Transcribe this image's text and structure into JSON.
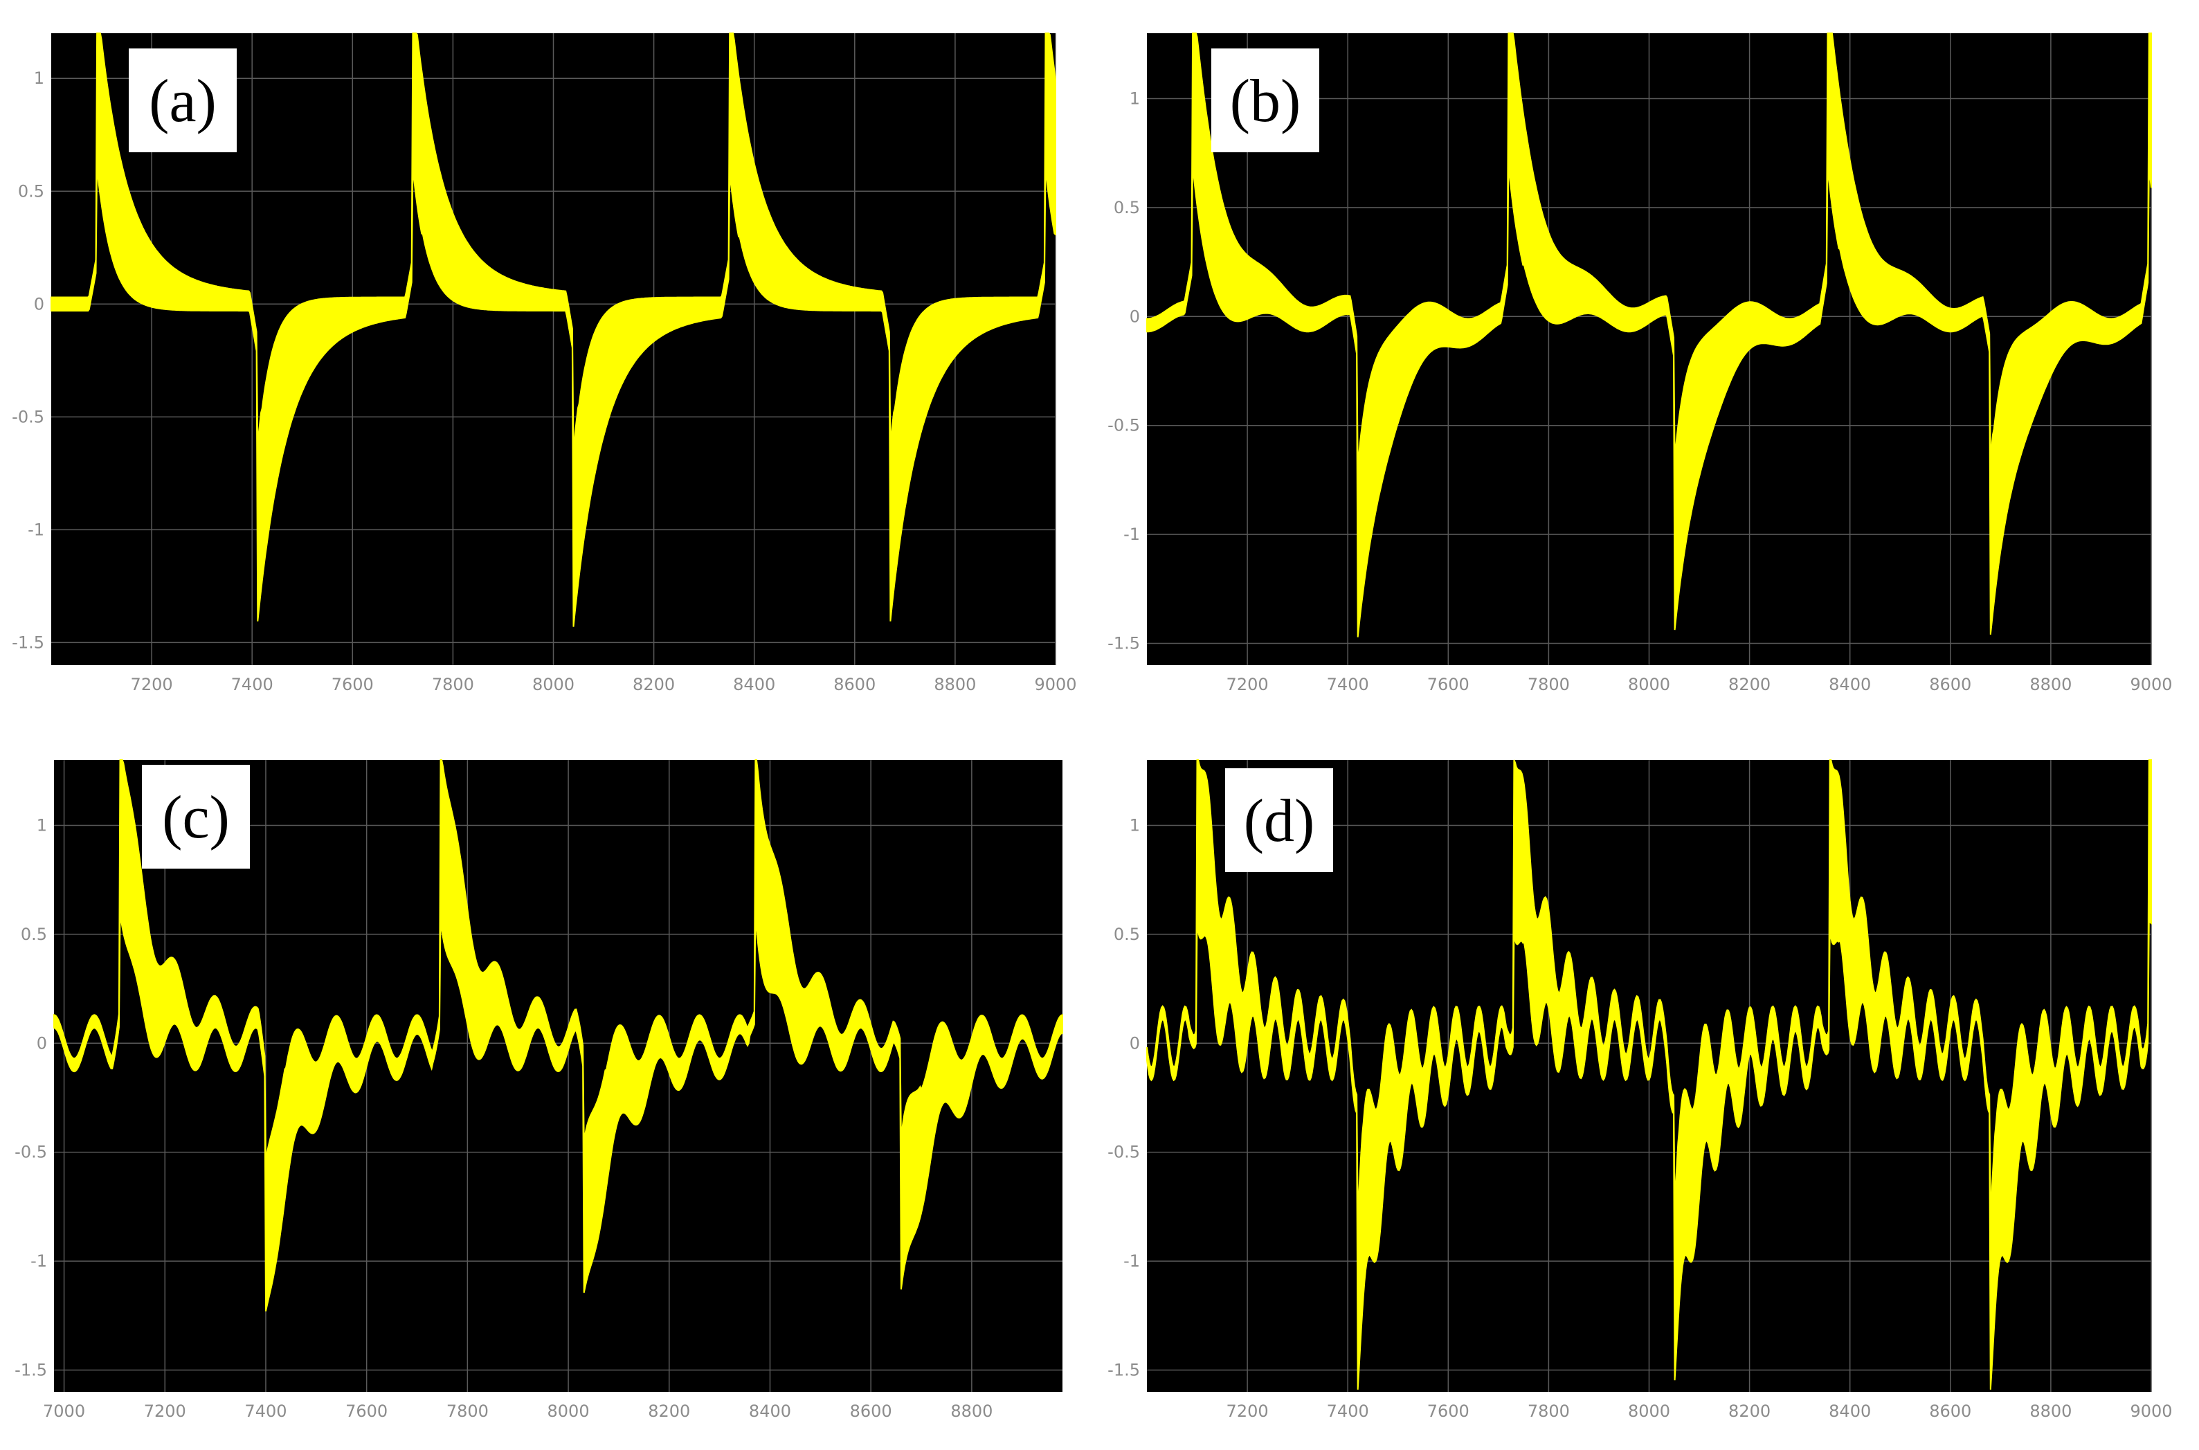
{
  "figure": {
    "colors": {
      "plot_bg": "#000000",
      "trace": "#ffff00",
      "grid": "#5a5a5a",
      "tick_text": "#8c8c8c",
      "label_box": "#ffffff"
    }
  },
  "chart_data": [
    {
      "type": "line",
      "panel_label": "(a)",
      "title": "",
      "xlabel": "",
      "ylabel": "",
      "xlim": [
        7000,
        9000
      ],
      "ylim": [
        -1.6,
        1.2
      ],
      "x_ticks": [
        "7200",
        "7400",
        "7600",
        "7800",
        "8000",
        "8200",
        "8400",
        "8600",
        "8800",
        "9000"
      ],
      "y_ticks": [
        "1",
        "0.5",
        "0",
        "-0.5",
        "-1",
        "-1.5"
      ],
      "grid": true,
      "waveform": {
        "description_free_params": true,
        "positive_spike_x": [
          7090,
          7720,
          8350,
          8980
        ],
        "negative_spike_x": [
          7410,
          8040,
          8670
        ],
        "positive_peak": 1.2,
        "negative_peak": -1.28,
        "ripple_amplitude": 0.0,
        "ripple_period": 0
      }
    },
    {
      "type": "line",
      "panel_label": "(b)",
      "title": "",
      "xlabel": "",
      "ylabel": "",
      "xlim": [
        7000,
        9000
      ],
      "ylim": [
        -1.6,
        1.3
      ],
      "x_ticks": [
        "7200",
        "7400",
        "7600",
        "7800",
        "8000",
        "8200",
        "8400",
        "8600",
        "8800",
        "9000"
      ],
      "y_ticks": [
        "1",
        "0.5",
        "0",
        "-0.5",
        "-1",
        "-1.5"
      ],
      "grid": true,
      "waveform": {
        "description_free_params": true,
        "positive_spike_x": [
          7090,
          7720,
          8355,
          8995
        ],
        "negative_spike_x": [
          7420,
          8050,
          8680
        ],
        "positive_peak": 1.3,
        "negative_peak": -1.35,
        "ripple_amplitude": 0.04,
        "ripple_period": 160
      }
    },
    {
      "type": "line",
      "panel_label": "(c)",
      "title": "",
      "xlabel": "",
      "ylabel": "",
      "xlim": [
        6980,
        8980
      ],
      "ylim": [
        -1.6,
        1.3
      ],
      "x_ticks": [
        "7000",
        "7200",
        "7400",
        "7600",
        "7800",
        "8000",
        "8200",
        "8400",
        "8600",
        "8800"
      ],
      "y_ticks": [
        "1",
        "0.5",
        "0",
        "-0.5",
        "-1",
        "-1.5"
      ],
      "grid": true,
      "waveform": {
        "description_free_params": true,
        "positive_spike_x": [
          7110,
          7745,
          8370
        ],
        "negative_spike_x": [
          7400,
          8030,
          8660
        ],
        "positive_peak": 1.3,
        "negative_peak": -1.08,
        "ripple_amplitude": 0.1,
        "ripple_period": 80
      }
    },
    {
      "type": "line",
      "panel_label": "(d)",
      "title": "",
      "xlabel": "",
      "ylabel": "",
      "xlim": [
        7000,
        9000
      ],
      "ylim": [
        -1.6,
        1.3
      ],
      "x_ticks": [
        "7200",
        "7400",
        "7600",
        "7800",
        "8000",
        "8200",
        "8400",
        "8600",
        "8800",
        "9000"
      ],
      "y_ticks": [
        "1",
        "0.5",
        "0",
        "-0.5",
        "-1",
        "-1.5"
      ],
      "grid": true,
      "waveform": {
        "description_free_params": true,
        "positive_spike_x": [
          7100,
          7730,
          8360,
          8995
        ],
        "negative_spike_x": [
          7420,
          8050,
          8680
        ],
        "positive_peak": 1.3,
        "negative_peak": -1.35,
        "ripple_amplitude": 0.14,
        "ripple_period": 45
      }
    }
  ]
}
